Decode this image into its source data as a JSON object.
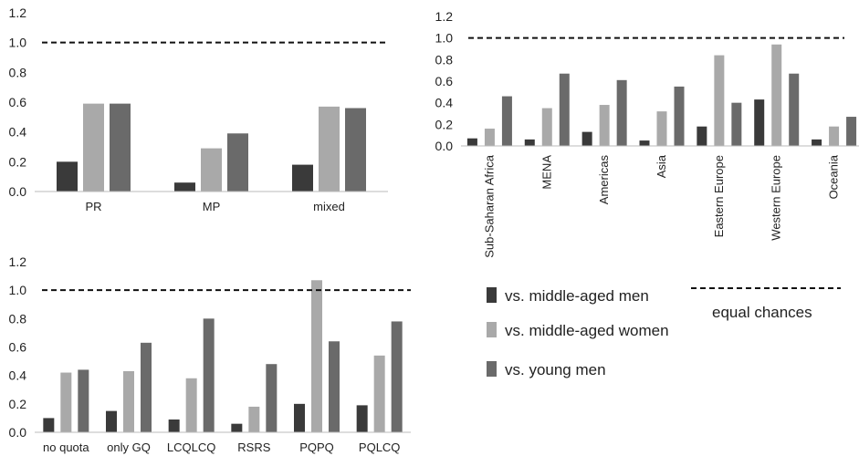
{
  "colors": {
    "s0": "#3a3a3a",
    "s1": "#a9a9a9",
    "s2": "#6a6a6a",
    "ref": "#111111"
  },
  "legend": {
    "series": [
      "vs. middle-aged men",
      "vs. middle-aged women",
      "vs. young men"
    ],
    "reference_label": "equal chances"
  },
  "chart_data": [
    {
      "type": "bar",
      "categories": [
        "PR",
        "MP",
        "mixed"
      ],
      "series": [
        {
          "name": "vs. middle-aged men",
          "values": [
            0.2,
            0.06,
            0.18
          ]
        },
        {
          "name": "vs. middle-aged women",
          "values": [
            0.59,
            0.29,
            0.57
          ]
        },
        {
          "name": "vs. young men",
          "values": [
            0.59,
            0.39,
            0.56
          ]
        }
      ],
      "ylim": [
        0,
        1.2
      ],
      "yticks": [
        "0.0",
        "0.2",
        "0.4",
        "0.6",
        "0.8",
        "1.0",
        "1.2"
      ],
      "reference_line": 1.0
    },
    {
      "type": "bar",
      "categories": [
        "Sub-Saharan Africa",
        "MENA",
        "Americas",
        "Asia",
        "Eastern Europe",
        "Western Europe",
        "Oceania"
      ],
      "series": [
        {
          "name": "vs. middle-aged men",
          "values": [
            0.07,
            0.06,
            0.13,
            0.05,
            0.18,
            0.43,
            0.06
          ]
        },
        {
          "name": "vs. middle-aged women",
          "values": [
            0.16,
            0.35,
            0.38,
            0.32,
            0.84,
            0.94,
            0.18
          ]
        },
        {
          "name": "vs. young men",
          "values": [
            0.46,
            0.67,
            0.61,
            0.55,
            0.4,
            0.67,
            0.27
          ]
        }
      ],
      "ylim": [
        0,
        1.2
      ],
      "yticks": [
        "0.0",
        "0.2",
        "0.4",
        "0.6",
        "0.8",
        "1.0",
        "1.2"
      ],
      "reference_line": 1.0
    },
    {
      "type": "bar",
      "categories": [
        "no quota",
        "only GQ",
        "LCQLCQ",
        "RSRS",
        "PQPQ",
        "PQLCQ"
      ],
      "series": [
        {
          "name": "vs. middle-aged men",
          "values": [
            0.1,
            0.15,
            0.09,
            0.06,
            0.2,
            0.19
          ]
        },
        {
          "name": "vs. middle-aged women",
          "values": [
            0.42,
            0.43,
            0.38,
            0.18,
            1.07,
            0.54
          ]
        },
        {
          "name": "vs. young men",
          "values": [
            0.44,
            0.63,
            0.8,
            0.48,
            0.64,
            0.78
          ]
        }
      ],
      "ylim": [
        0,
        1.2
      ],
      "yticks": [
        "0.0",
        "0.2",
        "0.4",
        "0.6",
        "0.8",
        "1.0",
        "1.2"
      ],
      "reference_line": 1.0
    }
  ]
}
